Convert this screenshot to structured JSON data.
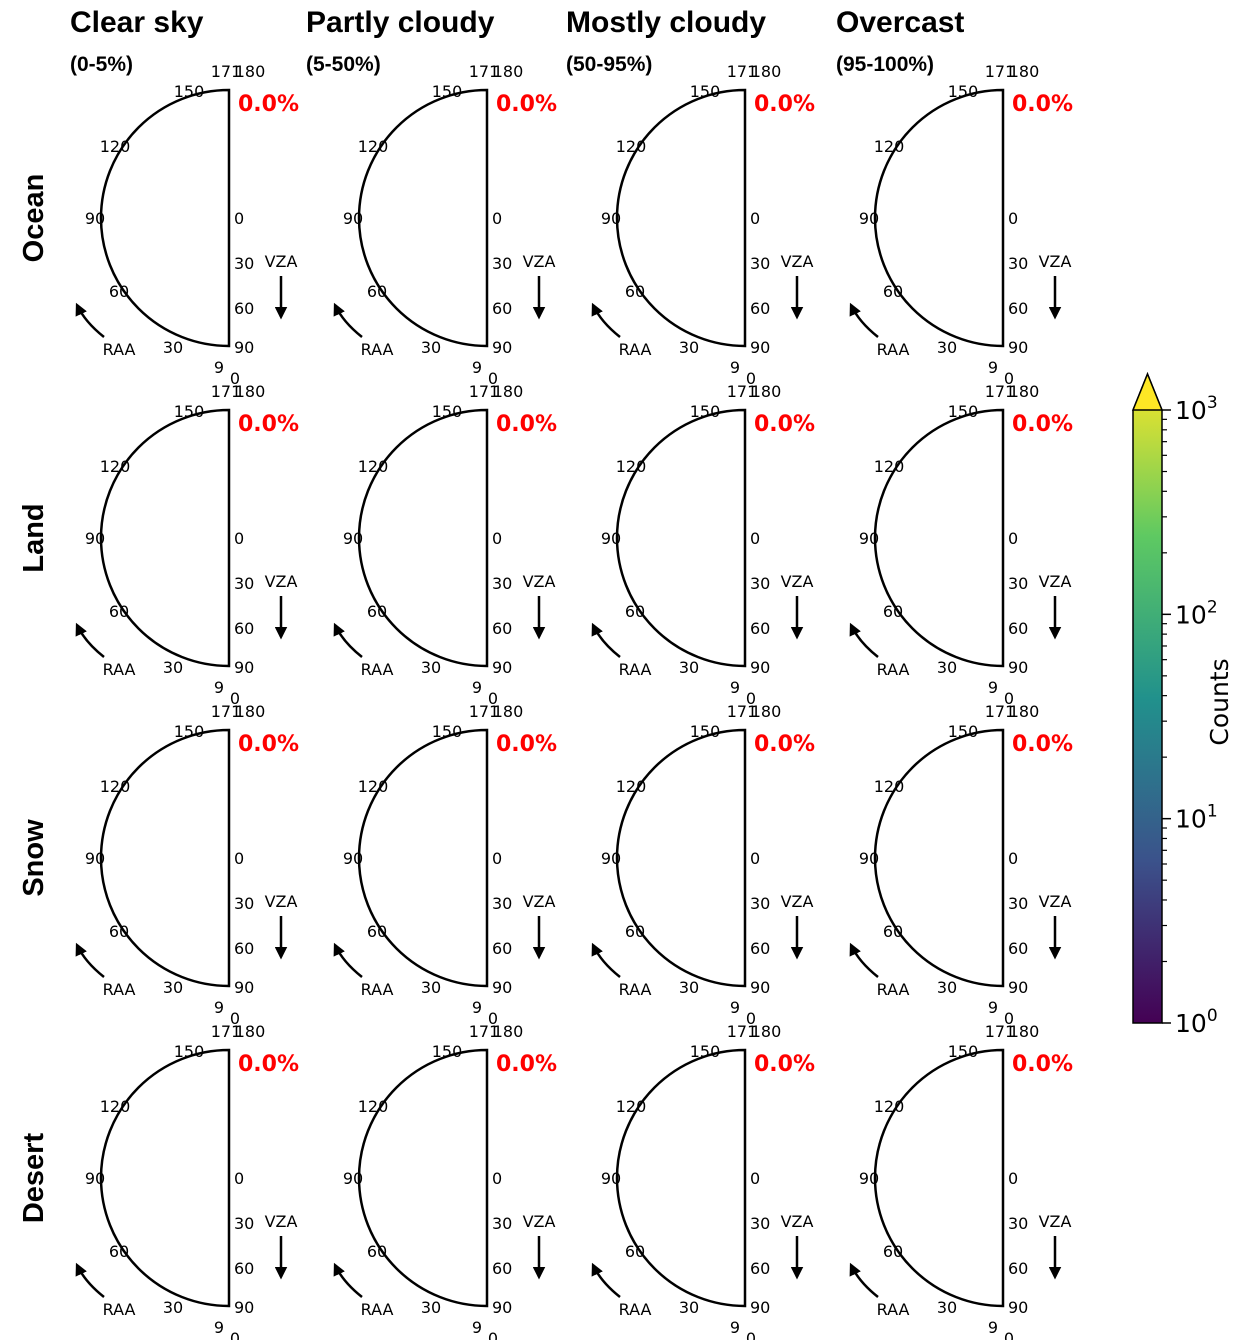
{
  "chart_data": {
    "type": "polar-histogram",
    "columns": [
      {
        "title": "Clear sky",
        "subtitle": "(0-5%)"
      },
      {
        "title": "Partly cloudy",
        "subtitle": "(5-50%)"
      },
      {
        "title": "Mostly cloudy",
        "subtitle": "(50-95%)"
      },
      {
        "title": "Overcast",
        "subtitle": "(95-100%)"
      }
    ],
    "rows": [
      "Ocean",
      "Land",
      "Snow",
      "Desert"
    ],
    "cells": [
      [
        "0.0%",
        "0.0%",
        "0.0%",
        "0.0%"
      ],
      [
        "0.0%",
        "0.0%",
        "0.0%",
        "0.0%"
      ],
      [
        "0.0%",
        "0.0%",
        "0.0%",
        "0.0%"
      ],
      [
        "0.0%",
        "0.0%",
        "0.0%",
        "0.0%"
      ]
    ],
    "raa_ticks": [
      "0",
      "9",
      "30",
      "60",
      "90",
      "120",
      "150",
      "171",
      "180"
    ],
    "vza_ticks": [
      "0",
      "30",
      "60",
      "90"
    ],
    "raa_label": "RAA",
    "vza_label": "VZA",
    "colorbar": {
      "label": "Counts",
      "scale": "log",
      "range": [
        1,
        1000
      ],
      "ticks": [
        {
          "base": "10",
          "exp": "0"
        },
        {
          "base": "10",
          "exp": "1"
        },
        {
          "base": "10",
          "exp": "2"
        },
        {
          "base": "10",
          "exp": "3"
        }
      ],
      "extend": "max",
      "colormap": [
        "#440154",
        "#3b528b",
        "#21918c",
        "#5ec962",
        "#fde725"
      ]
    },
    "percent_color": "#ff0000"
  }
}
